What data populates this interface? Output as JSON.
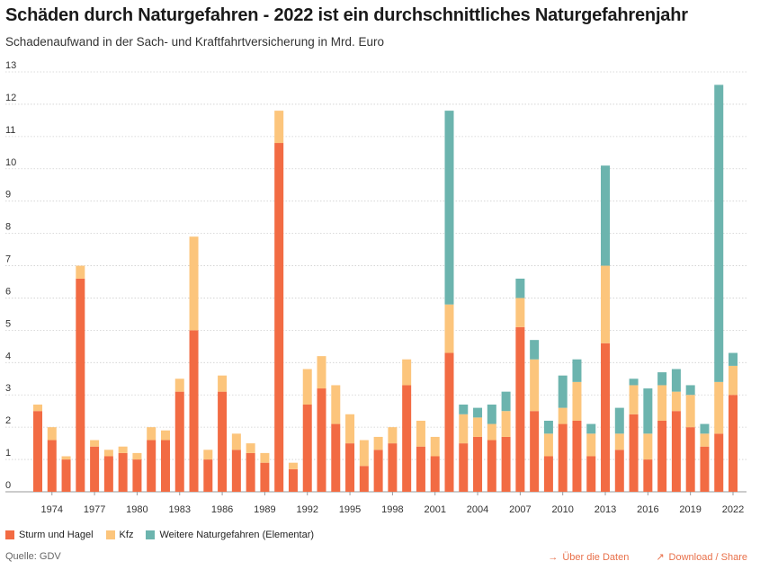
{
  "header": {
    "title": "Schäden durch Naturgefahren - 2022 ist ein durchschnittliches Naturgefahrenjahr",
    "subtitle": "Schadenaufwand in der Sach- und Kraftfahrtversicherung in Mrd. Euro"
  },
  "chart_data": {
    "type": "bar",
    "stacked": true,
    "title": "Schäden durch Naturgefahren - 2022 ist ein durchschnittliches Naturgefahrenjahr",
    "subtitle": "Schadenaufwand in der Sach- und Kraftfahrtversicherung in Mrd. Euro",
    "xlabel": "",
    "ylabel": "",
    "ylim": [
      0,
      13
    ],
    "yticks": [
      0,
      1,
      2,
      3,
      4,
      5,
      6,
      7,
      8,
      9,
      10,
      11,
      12,
      13
    ],
    "xtick_labels": [
      "1974",
      "1977",
      "1980",
      "1983",
      "1986",
      "1989",
      "1992",
      "1995",
      "1998",
      "2001",
      "2004",
      "2007",
      "2010",
      "2013",
      "2016",
      "2019",
      "2022"
    ],
    "grid": "horizontal dotted",
    "legend_position": "bottom-left",
    "categories": [
      "1973",
      "1974",
      "1975",
      "1976",
      "1977",
      "1978",
      "1979",
      "1980",
      "1981",
      "1982",
      "1983",
      "1984",
      "1985",
      "1986",
      "1987",
      "1988",
      "1989",
      "1990",
      "1991",
      "1992",
      "1993",
      "1994",
      "1995",
      "1996",
      "1997",
      "1998",
      "1999",
      "2000",
      "2001",
      "2002",
      "2003",
      "2004",
      "2005",
      "2006",
      "2007",
      "2008",
      "2009",
      "2010",
      "2011",
      "2012",
      "2013",
      "2014",
      "2015",
      "2016",
      "2017",
      "2018",
      "2019",
      "2020",
      "2021",
      "2022"
    ],
    "series": [
      {
        "name": "Sturm und Hagel",
        "color": "#f26b43",
        "values": [
          2.5,
          1.6,
          1.0,
          6.6,
          1.4,
          1.1,
          1.2,
          1.0,
          1.6,
          1.6,
          3.1,
          5.0,
          1.0,
          3.1,
          1.3,
          1.2,
          0.9,
          10.8,
          0.7,
          2.7,
          3.2,
          2.1,
          1.5,
          0.8,
          1.3,
          1.5,
          3.3,
          1.4,
          1.1,
          4.3,
          1.5,
          1.7,
          1.6,
          1.7,
          5.1,
          2.5,
          1.1,
          2.1,
          2.2,
          1.1,
          4.6,
          1.3,
          2.4,
          1.0,
          2.2,
          2.5,
          2.0,
          1.4,
          1.8,
          3.0
        ]
      },
      {
        "name": "Kfz",
        "color": "#fcc57c",
        "values": [
          0.2,
          0.4,
          0.1,
          0.4,
          0.2,
          0.2,
          0.2,
          0.2,
          0.4,
          0.3,
          0.4,
          2.9,
          0.3,
          0.5,
          0.5,
          0.3,
          0.3,
          1.0,
          0.2,
          1.1,
          1.0,
          1.2,
          0.9,
          0.8,
          0.4,
          0.5,
          0.8,
          0.8,
          0.6,
          1.5,
          0.9,
          0.6,
          0.5,
          0.8,
          0.9,
          1.6,
          0.7,
          0.5,
          1.2,
          0.7,
          2.4,
          0.5,
          0.9,
          0.8,
          1.1,
          0.6,
          1.0,
          0.4,
          1.6,
          0.9
        ]
      },
      {
        "name": "Weitere Naturgefahren (Elementar)",
        "color": "#6cb4ae",
        "values": [
          0,
          0,
          0,
          0,
          0,
          0,
          0,
          0,
          0,
          0,
          0,
          0,
          0,
          0,
          0,
          0,
          0,
          0,
          0,
          0,
          0,
          0,
          0,
          0,
          0,
          0,
          0,
          0,
          0,
          6.0,
          0.3,
          0.3,
          0.6,
          0.6,
          0.6,
          0.6,
          0.4,
          1.0,
          0.7,
          0.3,
          3.1,
          0.8,
          0.2,
          1.4,
          0.4,
          0.7,
          0.3,
          0.3,
          9.2,
          0.4
        ]
      }
    ]
  },
  "legend": {
    "items": [
      {
        "label": "Sturm und Hagel",
        "color": "#f26b43"
      },
      {
        "label": "Kfz",
        "color": "#fcc57c"
      },
      {
        "label": "Weitere Naturgefahren (Elementar)",
        "color": "#6cb4ae"
      }
    ]
  },
  "footer": {
    "source": "Quelle: GDV",
    "data_link": "Über die Daten",
    "download_link": "Download / Share",
    "link_color": "#e8704a"
  }
}
